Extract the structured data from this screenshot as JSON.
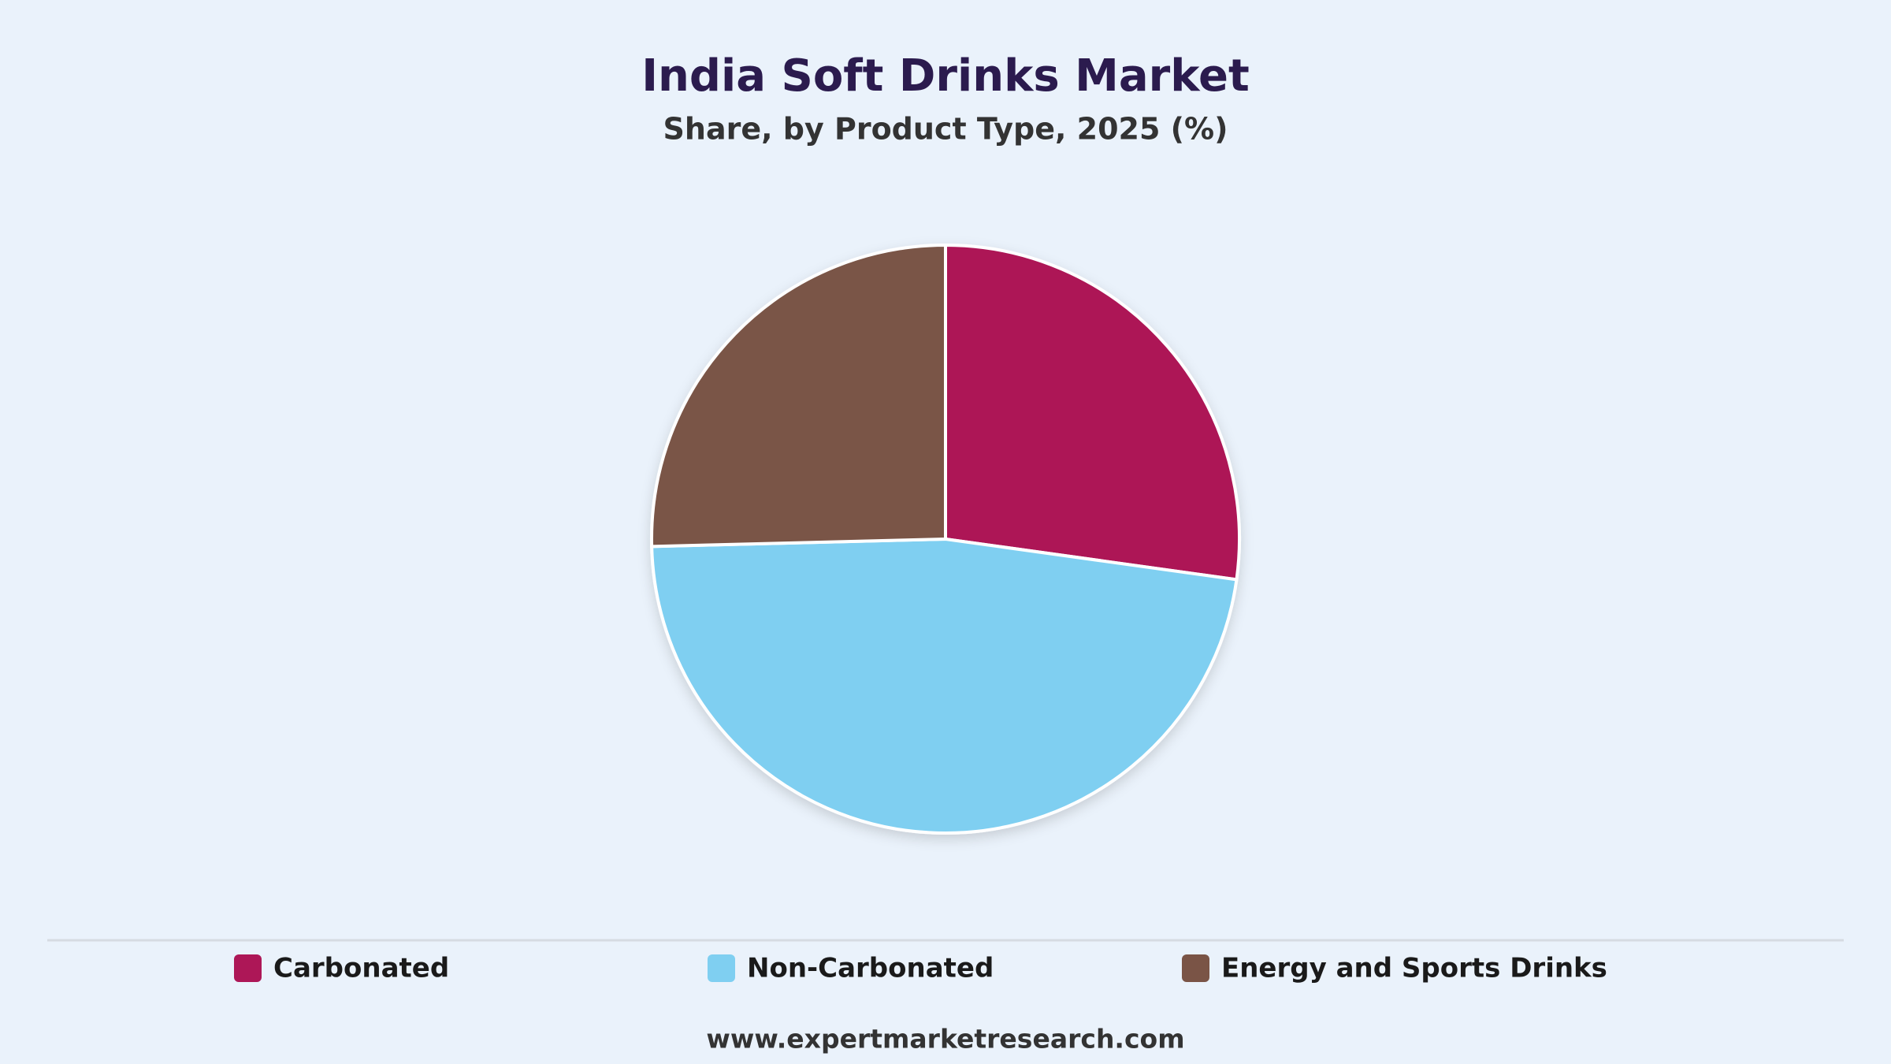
{
  "chart_data": {
    "type": "pie",
    "title": "India Soft Drinks Market",
    "subtitle": "Share, by Product Type, 2025 (%)",
    "categories": [
      "Carbonated",
      "Non-Carbonated",
      "Energy and Sports Drinks"
    ],
    "values": [
      27.2,
      47.4,
      25.4
    ],
    "colors": [
      "#ad1757",
      "#7fcff1",
      "#7a5446"
    ],
    "source": "www.expertmarketresearch.com"
  }
}
